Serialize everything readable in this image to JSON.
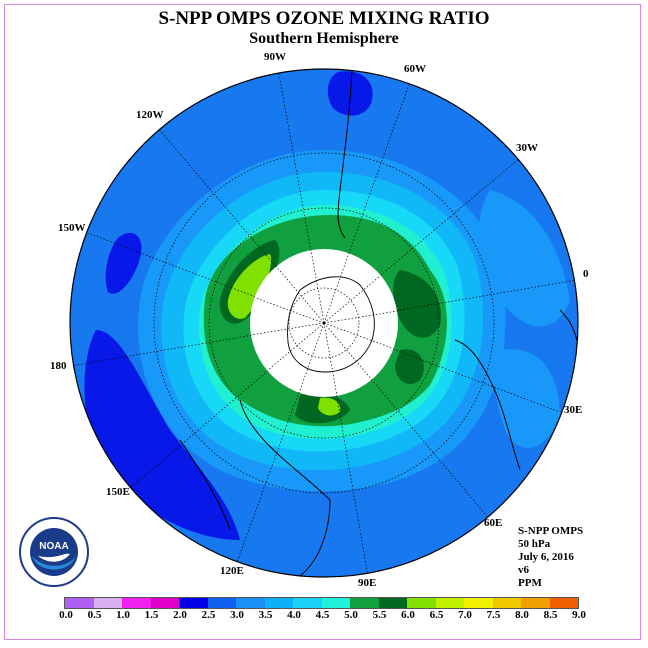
{
  "title": "S-NPP OMPS OZONE MIXING RATIO",
  "subtitle": "Southern Hemisphere",
  "longitude_labels": [
    "90W",
    "60W",
    "30W",
    "0",
    "30E",
    "60E",
    "90E",
    "120E",
    "150E",
    "180",
    "150W",
    "120W"
  ],
  "info": {
    "line1": "S-NPP OMPS",
    "line2": "50 hPa",
    "line3": "July 6, 2016",
    "line4": "v6",
    "line5": "PPM"
  },
  "colorbar": {
    "colors": [
      "#b060f0",
      "#d8b0f0",
      "#f020f0",
      "#e000c8",
      "#0000e8",
      "#1060f0",
      "#1890f8",
      "#10b0f8",
      "#18d0f8",
      "#20f0d8",
      "#10a040",
      "#006820",
      "#80e000",
      "#c0f000",
      "#f0f000",
      "#f0c800",
      "#f0a000",
      "#f06000",
      "#f00000",
      "#a0604a"
    ],
    "labels": [
      "0.0",
      "0.5",
      "1.0",
      "1.5",
      "2.0",
      "2.5",
      "3.0",
      "3.5",
      "4.0",
      "4.5",
      "5.0",
      "5.5",
      "6.0",
      "6.5",
      "7.0",
      "7.5",
      "8.0",
      "8.5",
      "9.0"
    ]
  },
  "logo": {
    "name": "NOAA",
    "icon": "noaa-logo-icon"
  }
}
